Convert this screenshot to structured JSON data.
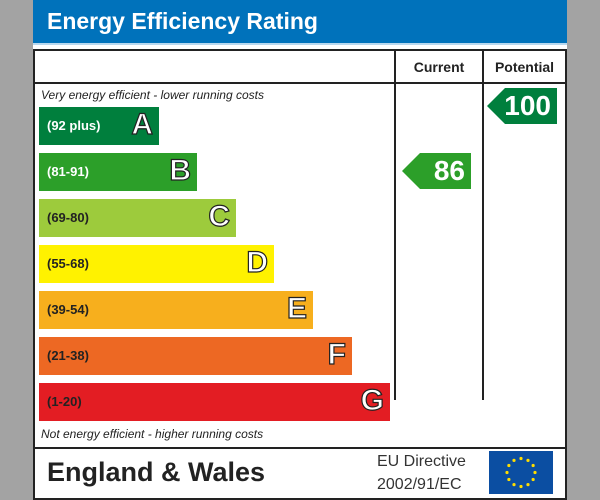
{
  "chart_data": {
    "type": "bar",
    "title": "Energy Efficiency Rating",
    "columns": [
      "Current",
      "Potential"
    ],
    "top_note": "Very energy efficient - lower running costs",
    "bottom_note": "Not energy efficient - higher running costs",
    "bands": [
      {
        "letter": "A",
        "range": "(92 plus)",
        "color": "#007f3d",
        "text_color": "#ffffff"
      },
      {
        "letter": "B",
        "range": "(81-91)",
        "color": "#2c9f29",
        "text_color": "#ffffff"
      },
      {
        "letter": "C",
        "range": "(69-80)",
        "color": "#9dcb3c",
        "text_color": "#222222"
      },
      {
        "letter": "D",
        "range": "(55-68)",
        "color": "#fff200",
        "text_color": "#222222"
      },
      {
        "letter": "E",
        "range": "(39-54)",
        "color": "#f7af1d",
        "text_color": "#222222"
      },
      {
        "letter": "F",
        "range": "(21-38)",
        "color": "#ed6823",
        "text_color": "#222222"
      },
      {
        "letter": "G",
        "range": "(1-20)",
        "color": "#e31d23",
        "text_color": "#222222"
      }
    ],
    "current": {
      "value": 86,
      "band": "B",
      "color": "#2c9f29"
    },
    "potential": {
      "value": 100,
      "band": "A",
      "color": "#007f3d"
    }
  },
  "footer": {
    "region": "England & Wales",
    "directive_line1": "EU Directive",
    "directive_line2": "2002/91/EC",
    "flag": "eu-flag-icon"
  },
  "colors": {
    "header": "#0072bb",
    "background": "#a3a3a3"
  }
}
